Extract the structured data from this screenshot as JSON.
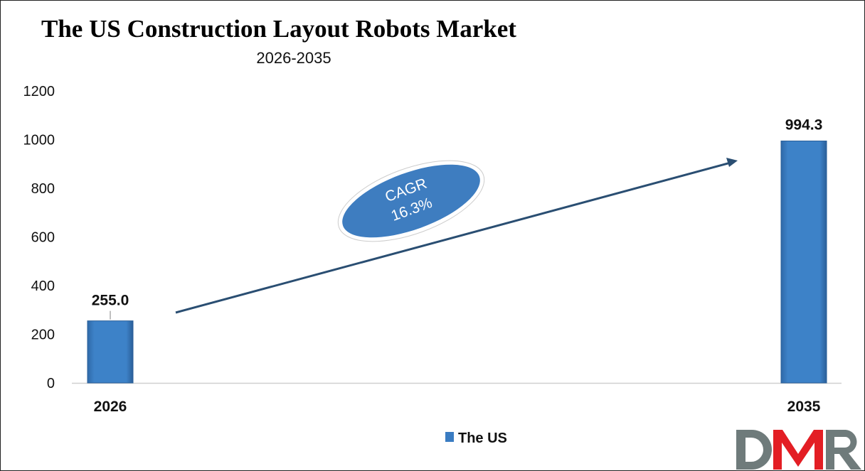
{
  "chart_data": {
    "type": "bar",
    "title": "The US Construction Layout Robots Market",
    "subtitle": "2026-2035",
    "categories": [
      "2026",
      "2035"
    ],
    "series": [
      {
        "name": "The US",
        "values": [
          255.0,
          994.3
        ],
        "color": "#3a7cc2"
      }
    ],
    "data_labels": [
      "255.0",
      "994.3"
    ],
    "ylim": [
      0,
      1200
    ],
    "yticks": [
      0,
      200,
      400,
      600,
      800,
      1000,
      1200
    ],
    "grid": false,
    "legend": "bottom",
    "annotation": {
      "line1": "CAGR",
      "line2": "16.3%"
    },
    "arrow_color": "#2a4e72"
  },
  "logo": {
    "text": "DMR",
    "colors": [
      "#6f7b7b",
      "#e31e24",
      "#6f7b7b"
    ]
  }
}
